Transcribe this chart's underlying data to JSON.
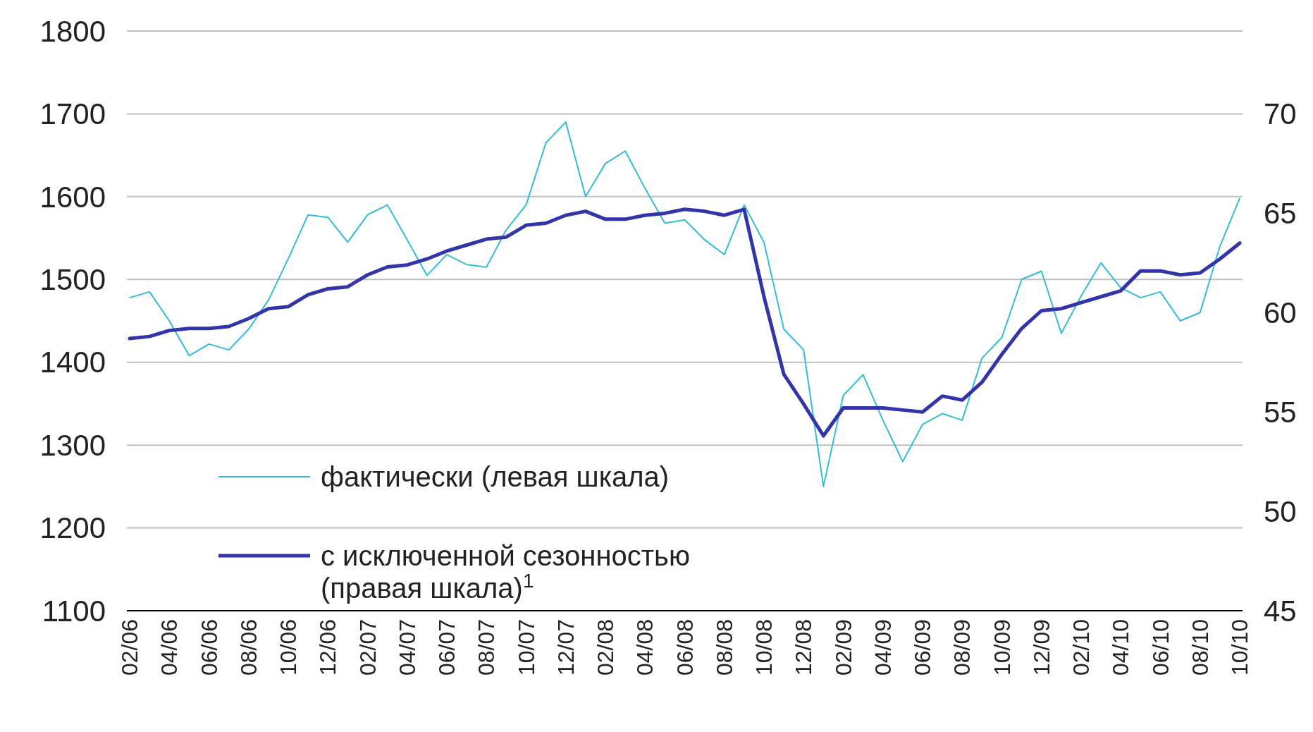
{
  "chart_data": {
    "type": "line",
    "categories": [
      "02/06",
      null,
      "04/06",
      null,
      "06/06",
      null,
      "08/06",
      null,
      "10/06",
      null,
      "12/06",
      null,
      "02/07",
      null,
      "04/07",
      null,
      "06/07",
      null,
      "08/07",
      null,
      "10/07",
      null,
      "12/07",
      null,
      "02/08",
      null,
      "04/08",
      null,
      "06/08",
      null,
      "08/08",
      null,
      "10/08",
      null,
      "12/08",
      null,
      "02/09",
      null,
      "04/09",
      null,
      "06/09",
      null,
      "08/09",
      null,
      "10/09",
      null,
      "12/09",
      null,
      "02/10",
      null,
      "04/10",
      null,
      "06/10",
      null,
      "08/10",
      null,
      "10/10"
    ],
    "series": [
      {
        "name": "фактически (левая шкала)",
        "color": "#33bbdd",
        "values": [
          1478,
          1485,
          1450,
          1408,
          1422,
          1415,
          1440,
          1475,
          1525,
          1578,
          1575,
          1545,
          1578,
          1590,
          1548,
          1505,
          1530,
          1518,
          1515,
          1560,
          1590,
          1665,
          1690,
          1600,
          1640,
          1655,
          1610,
          1568,
          1572,
          1548,
          1530,
          1590,
          1545,
          1440,
          1415,
          1250,
          1360,
          1385,
          1330,
          1280,
          1325,
          1338,
          1330,
          1405,
          1430,
          1500,
          1510,
          1435,
          1480,
          1520,
          1490,
          1478,
          1485,
          1450,
          1460,
          1540,
          1598
        ]
      },
      {
        "name": "с исключенной сезонностью (правая шкала)$^{1}$",
        "color": "#3333aa",
        "axis": "y2",
        "values": [
          58.7,
          58.8,
          59.1,
          59.2,
          59.2,
          59.3,
          59.7,
          60.2,
          60.3,
          60.9,
          61.2,
          61.3,
          61.9,
          62.3,
          62.4,
          62.7,
          63.1,
          63.4,
          63.7,
          63.8,
          64.4,
          64.5,
          64.9,
          65.1,
          64.7,
          64.7,
          64.9,
          65.0,
          65.2,
          65.1,
          64.9,
          65.2,
          60.8,
          56.9,
          55.4,
          53.8,
          55.2,
          55.2,
          55.2,
          55.1,
          55.0,
          55.8,
          55.6,
          56.5,
          57.9,
          59.2,
          60.1,
          60.2,
          60.5,
          60.8,
          61.1,
          62.1,
          62.1,
          61.9,
          62.0,
          62.7,
          63.5
        ]
      }
    ],
    "ylim": [
      1100,
      1800
    ],
    "yticks": [
      1100,
      1200,
      1300,
      1400,
      1500,
      1600,
      1700,
      1800
    ],
    "y2lim": [
      45,
      74.17
    ],
    "y2ticks": [
      45,
      50,
      55,
      60,
      65,
      70
    ],
    "grid": "y",
    "legend": "bottom left"
  }
}
